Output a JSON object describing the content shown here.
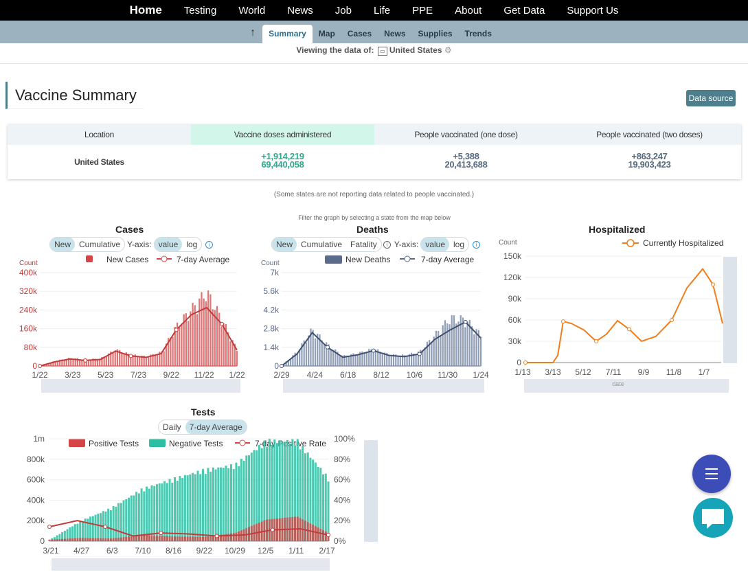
{
  "nav": {
    "items": [
      "Home",
      "Testing",
      "World",
      "News",
      "Job",
      "Life",
      "PPE",
      "About",
      "Get Data",
      "Support Us"
    ]
  },
  "subnav": {
    "up_icon": "arrow-up-icon",
    "tabs": [
      "Summary",
      "Map",
      "Cases",
      "News",
      "Supplies",
      "Trends"
    ],
    "active": "Summary"
  },
  "viewing": {
    "label": "Viewing the data of:",
    "location": "United States",
    "gear_icon": "gear-icon"
  },
  "vaccine": {
    "title": "Vaccine Summary",
    "data_source": "Data source",
    "headers": [
      "Location",
      "Vaccine doses administered",
      "People vaccinated (one dose)",
      "People vaccinated (two doses)"
    ],
    "row": {
      "location": "United States",
      "doses_new": "+1,914,219",
      "doses_total": "69,440,058",
      "one_new": "+5,388",
      "one_total": "20,413,688",
      "two_new": "+863,247",
      "two_total": "19,903,423"
    },
    "note": "(Some states are not reporting data related to people vaccinated.)"
  },
  "filter_note": "Filter the graph by selecting a state from the map below",
  "cases": {
    "title": "Cases",
    "toggle": [
      "New",
      "Cumulative"
    ],
    "toggle_on": "New",
    "yaxis_label": "Y-axis:",
    "yaxis": [
      "value",
      "log"
    ],
    "yaxis_on": "value",
    "count_label": "Count",
    "legend": [
      "New Cases",
      "7-day Average"
    ]
  },
  "deaths": {
    "title": "Deaths",
    "toggle": [
      "New",
      "Cumulative",
      "Fatality"
    ],
    "toggle_on": "New",
    "yaxis_label": "Y-axis:",
    "yaxis": [
      "value",
      "log"
    ],
    "yaxis_on": "value",
    "count_label": "Count",
    "legend": [
      "New Deaths",
      "7-day Average"
    ]
  },
  "hosp": {
    "title": "Hospitalized",
    "count_label": "Count",
    "legend": [
      "Currently Hospitalized"
    ],
    "slider_label": "date"
  },
  "tests": {
    "title": "Tests",
    "toggle": [
      "Daily",
      "7-day Average"
    ],
    "toggle_on": "7-day Average",
    "legend": [
      "Positive Tests",
      "Negative Tests",
      "7-day Positive Rate"
    ]
  },
  "colors": {
    "cases": "#d64545",
    "deaths": "#5a6b8c",
    "hosp": "#f07d1a",
    "negative": "#2dbfa3",
    "accent": "#4d7f8c",
    "fab_menu": "#3d4db7",
    "fab_chat": "#16a5b8"
  },
  "fab": {
    "menu_icon": "menu-icon",
    "chat_icon": "chat-icon"
  },
  "chart_data": [
    {
      "type": "bar",
      "title": "Cases",
      "ylabel": "Count",
      "ylim": [
        0,
        400000
      ],
      "yticks": [
        "0",
        "80k",
        "160k",
        "240k",
        "320k",
        "400k"
      ],
      "xticks": [
        "1/22",
        "3/23",
        "5/23",
        "7/23",
        "9/22",
        "11/22",
        "1/22"
      ],
      "series": [
        {
          "name": "New Cases",
          "x": [
            "1/22",
            "3/23",
            "4/23",
            "5/23",
            "6/23",
            "7/23",
            "8/23",
            "9/22",
            "10/22",
            "11/22",
            "12/22",
            "1/2",
            "1/22",
            "2/5"
          ],
          "values": [
            0,
            20000,
            32000,
            26000,
            30000,
            66000,
            45000,
            38000,
            55000,
            160000,
            230000,
            300000,
            190000,
            65000
          ]
        },
        {
          "name": "7-day Average",
          "x": [
            "1/22",
            "3/23",
            "4/23",
            "5/23",
            "6/23",
            "7/23",
            "8/23",
            "9/22",
            "10/22",
            "11/22",
            "12/22",
            "1/2",
            "1/22",
            "2/5"
          ],
          "values": [
            0,
            18000,
            30000,
            24000,
            28000,
            64000,
            43000,
            37000,
            53000,
            155000,
            220000,
            250000,
            180000,
            68000
          ]
        }
      ]
    },
    {
      "type": "bar",
      "title": "Deaths",
      "ylabel": "Count",
      "ylim": [
        0,
        7000
      ],
      "yticks": [
        "0",
        "1.4k",
        "2.8k",
        "4.2k",
        "5.6k",
        "7k"
      ],
      "xticks": [
        "2/29",
        "4/24",
        "6/18",
        "8/12",
        "10/6",
        "11/30",
        "1/24"
      ],
      "series": [
        {
          "name": "New Deaths",
          "x": [
            "2/29",
            "3/27",
            "4/24",
            "5/21",
            "6/18",
            "7/15",
            "8/12",
            "9/9",
            "10/6",
            "11/2",
            "11/30",
            "12/28",
            "1/24",
            "2/7"
          ],
          "values": [
            0,
            1000,
            2600,
            1500,
            700,
            900,
            1200,
            800,
            750,
            1000,
            2200,
            3400,
            3300,
            2200
          ]
        },
        {
          "name": "7-day Average",
          "x": [
            "2/29",
            "3/27",
            "4/24",
            "5/21",
            "6/18",
            "7/15",
            "8/12",
            "9/9",
            "10/6",
            "11/2",
            "11/30",
            "12/28",
            "1/24",
            "2/7"
          ],
          "values": [
            0,
            900,
            2500,
            1400,
            650,
            850,
            1150,
            800,
            700,
            900,
            2000,
            2700,
            3300,
            2100
          ]
        }
      ]
    },
    {
      "type": "line",
      "title": "Hospitalized",
      "ylabel": "Count",
      "ylim": [
        0,
        150000
      ],
      "yticks": [
        "0",
        "30k",
        "60k",
        "90k",
        "120k",
        "150k"
      ],
      "xticks": [
        "1/13",
        "3/13",
        "5/12",
        "7/11",
        "9/9",
        "11/8",
        "1/7"
      ],
      "series": [
        {
          "name": "Currently Hospitalized",
          "x": [
            "1/13",
            "3/13",
            "3/25",
            "4/10",
            "4/28",
            "5/12",
            "6/10",
            "7/1",
            "7/20",
            "8/10",
            "9/9",
            "10/10",
            "11/8",
            "12/8",
            "1/7",
            "1/20",
            "2/7"
          ],
          "values": [
            0,
            0,
            10000,
            58000,
            55000,
            46000,
            30000,
            40000,
            59000,
            47000,
            30000,
            37000,
            60000,
            105000,
            132000,
            110000,
            55000
          ]
        }
      ]
    },
    {
      "type": "bar",
      "title": "Tests",
      "ylim": [
        0,
        1000000
      ],
      "yticks": [
        "0",
        "200k",
        "400k",
        "600k",
        "800k",
        "1m"
      ],
      "y2ticks": [
        "0%",
        "20%",
        "40%",
        "60%",
        "80%",
        "100%"
      ],
      "xticks": [
        "3/21",
        "4/27",
        "6/3",
        "7/10",
        "8/16",
        "9/22",
        "10/29",
        "12/5",
        "1/11",
        "2/17"
      ],
      "series": [
        {
          "name": "Positive Tests",
          "x": [
            "3/21",
            "4/27",
            "6/3",
            "7/10",
            "8/16",
            "9/22",
            "10/29",
            "12/5",
            "1/11",
            "2/17"
          ],
          "values": [
            15000,
            30000,
            25000,
            60000,
            45000,
            42000,
            80000,
            210000,
            240000,
            80000
          ]
        },
        {
          "name": "Negative Tests",
          "x": [
            "3/21",
            "4/27",
            "6/3",
            "7/10",
            "8/16",
            "9/22",
            "10/29",
            "12/5",
            "1/11",
            "2/17"
          ],
          "values": [
            10000,
            200000,
            330000,
            520000,
            620000,
            710000,
            760000,
            1000000,
            1000000,
            630000
          ]
        },
        {
          "name": "7-day Positive Rate",
          "x": [
            "3/21",
            "4/2",
            "4/27",
            "6/3",
            "7/10",
            "8/16",
            "9/22",
            "10/29",
            "12/5",
            "1/11",
            "2/17"
          ],
          "values": [
            14,
            20,
            14,
            5,
            8,
            7,
            5,
            6,
            11,
            12,
            6
          ]
        }
      ]
    }
  ]
}
